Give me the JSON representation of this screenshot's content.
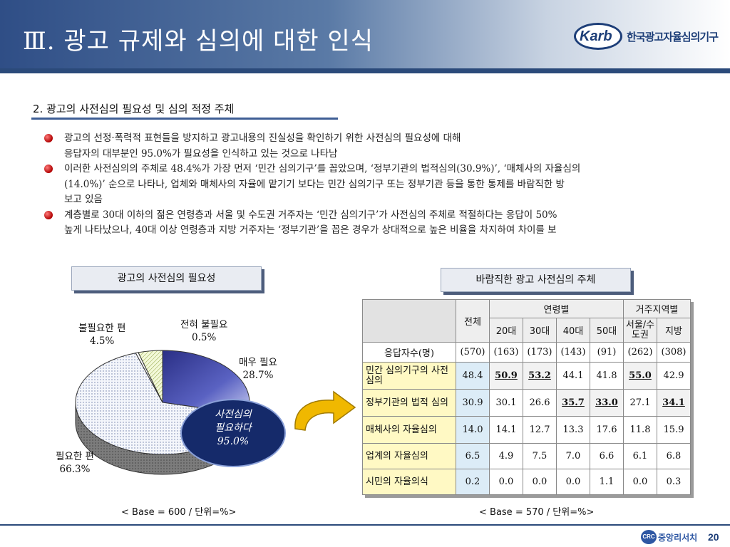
{
  "header": {
    "title": "Ⅲ. 광고 규제와 심의에 대한 인식",
    "logo_text": "Karb",
    "logo_org": "한국광고자율심의기구"
  },
  "section": {
    "title": "2. 광고의 사전심의 필요성 및 심의 적정 주체"
  },
  "bullets": [
    {
      "lines": [
        "광고의 선정·폭력적 표현들을 방지하고 광고내용의 진실성을 확인하기 위한 사전심의 필요성에 대해",
        "응답자의 대부분인 95.0%가 필요성을 인식하고 있는 것으로 나타남"
      ]
    },
    {
      "lines": [
        "이러한 사전심의의 주체로 48.4%가 가장 먼저 ‘민간 심의기구’를 꼽았으며, ‘정부기관의 법적심의(30.9%)’, ‘매체사의 자율심의",
        "(14.0%)’ 순으로 나타나, 업체와 매체사의 자율에 맡기기 보다는 민간 심의기구 또는 정부기관 등을 통한 통제를 바람직한 방",
        "보고 있음"
      ]
    },
    {
      "lines": [
        "계층별로 30대 이하의 젊은 연령층과 서울 및 수도권 거주자는 ‘민간 심의기구’가 사전심의 주체로 적절하다는 응답이 50%",
        "높게 나타났으나, 40대 이상 연령층과 지방 거주자는 ‘정부기관’을 꼽은 경우가 상대적으로 높은 비율을 차지하여 차이를 보"
      ]
    }
  ],
  "left_panel": {
    "title": "광고의 사전심의 필요성",
    "base_note": "< Base = 600 / 단위=%>",
    "callout": [
      "사전심의",
      "필요하다",
      "95.0%"
    ]
  },
  "chart_data": {
    "type": "pie",
    "title": "광고의 사전심의 필요성",
    "slices": [
      {
        "label": "매우 필요",
        "value": 28.7,
        "color": "#3a3f9e"
      },
      {
        "label": "필요한 편",
        "value": 66.3,
        "color": "#e8ecf5"
      },
      {
        "label": "전혀 불필요",
        "value": 0.5,
        "color": "#ffffff"
      },
      {
        "label": "불필요한 편",
        "value": 4.5,
        "color": "#eef5cf"
      }
    ],
    "unit": "%",
    "base": 600
  },
  "right_panel": {
    "title": "바람직한 광고 사전심의 주체",
    "base_note": "< Base = 570 / 단위=%>",
    "table": {
      "col_total": "전체",
      "group_age": "연령별",
      "group_region": "거주지역별",
      "columns": [
        "20대",
        "30대",
        "40대",
        "50대",
        "서울/수도권",
        "지방"
      ],
      "respondents_label": "응답자수(명)",
      "respondents": [
        "(570)",
        "(163)",
        "(173)",
        "(143)",
        "(91)",
        "(262)",
        "(308)"
      ],
      "rows": [
        {
          "label": "민간 심의기구의 사전심의",
          "total": "48.4",
          "values": [
            "50.9",
            "53.2",
            "44.1",
            "41.8",
            "55.0",
            "42.9"
          ],
          "highlight": [
            true,
            true,
            false,
            false,
            true,
            false
          ]
        },
        {
          "label": "정부기관의 법적 심의",
          "total": "30.9",
          "values": [
            "30.1",
            "26.6",
            "35.7",
            "33.0",
            "27.1",
            "34.1"
          ],
          "highlight": [
            false,
            false,
            true,
            true,
            false,
            true
          ]
        },
        {
          "label": "매체사의 자율심의",
          "total": "14.0",
          "values": [
            "14.1",
            "12.7",
            "13.3",
            "17.6",
            "11.8",
            "15.9"
          ],
          "highlight": [
            false,
            false,
            false,
            false,
            false,
            false
          ]
        },
        {
          "label": "업계의 자율심의",
          "total": "6.5",
          "values": [
            "4.9",
            "7.5",
            "7.0",
            "6.6",
            "6.1",
            "6.8"
          ],
          "highlight": [
            false,
            false,
            false,
            false,
            false,
            false
          ]
        },
        {
          "label": "시민의 자율의식",
          "total": "0.2",
          "values": [
            "0.0",
            "0.0",
            "0.0",
            "1.1",
            "0.0",
            "0.3"
          ],
          "highlight": [
            false,
            false,
            false,
            false,
            false,
            false
          ]
        }
      ]
    }
  },
  "footer": {
    "logo_badge": "CRC",
    "logo_text": "중앙리서치",
    "page_number": "20"
  }
}
